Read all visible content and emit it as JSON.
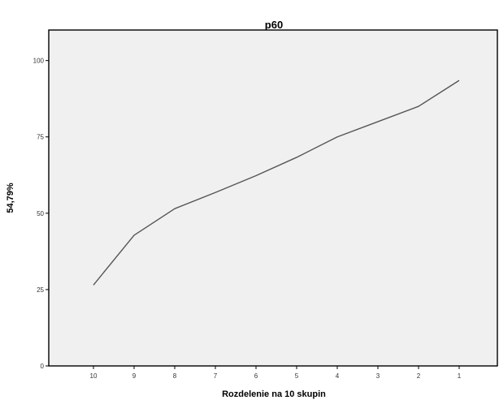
{
  "chart_data": {
    "type": "line",
    "title": "p60",
    "xlabel": "Rozdelenie na 10 skupin",
    "ylabel": "54,79%",
    "categories": [
      "10",
      "9",
      "8",
      "7",
      "6",
      "5",
      "4",
      "3",
      "2",
      "1"
    ],
    "series": [
      {
        "values": [
          26.5,
          42.8,
          51.5,
          56.8,
          62.3,
          68.3,
          75.0,
          80.0,
          85.0,
          93.5
        ]
      }
    ],
    "ylim": [
      0,
      110
    ],
    "yticks": [
      0,
      25,
      50,
      75,
      100
    ],
    "grid": false,
    "legend": "none",
    "colors": {
      "plot_background": "#f0f0f0",
      "line": "#555555",
      "axis": "#000000"
    }
  }
}
